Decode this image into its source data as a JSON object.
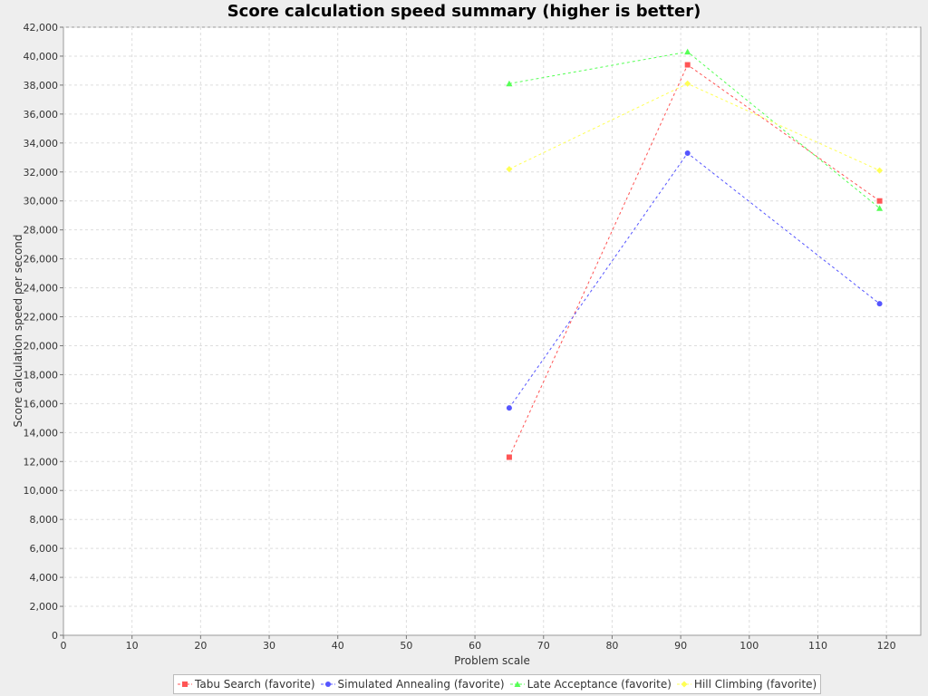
{
  "chart_data": {
    "type": "line",
    "title": "Score calculation speed summary (higher is better)",
    "xlabel": "Problem scale",
    "ylabel": "Score calculation speed per second",
    "xlim": [
      0,
      125
    ],
    "ylim": [
      0,
      42000
    ],
    "x_ticks": [
      0,
      10,
      20,
      30,
      40,
      50,
      60,
      70,
      80,
      90,
      100,
      110,
      120
    ],
    "y_ticks": [
      0,
      2000,
      4000,
      6000,
      8000,
      10000,
      12000,
      14000,
      16000,
      18000,
      20000,
      22000,
      24000,
      26000,
      28000,
      30000,
      32000,
      34000,
      36000,
      38000,
      40000,
      42000
    ],
    "grid": true,
    "legend_position": "bottom",
    "series": [
      {
        "name": "Tabu Search (favorite)",
        "color": "#ff5555",
        "marker": "square",
        "x": [
          65,
          91,
          119
        ],
        "y": [
          12300,
          39400,
          30000
        ]
      },
      {
        "name": "Simulated Annealing (favorite)",
        "color": "#5555ff",
        "marker": "circle",
        "x": [
          65,
          91,
          119
        ],
        "y": [
          15700,
          33300,
          22900
        ]
      },
      {
        "name": "Late Acceptance (favorite)",
        "color": "#55ff55",
        "marker": "triangle",
        "x": [
          65,
          91,
          119
        ],
        "y": [
          38100,
          40300,
          29500
        ]
      },
      {
        "name": "Hill Climbing (favorite)",
        "color": "#ffff55",
        "marker": "diamond",
        "x": [
          65,
          91,
          119
        ],
        "y": [
          32200,
          38100,
          32100
        ]
      }
    ]
  }
}
